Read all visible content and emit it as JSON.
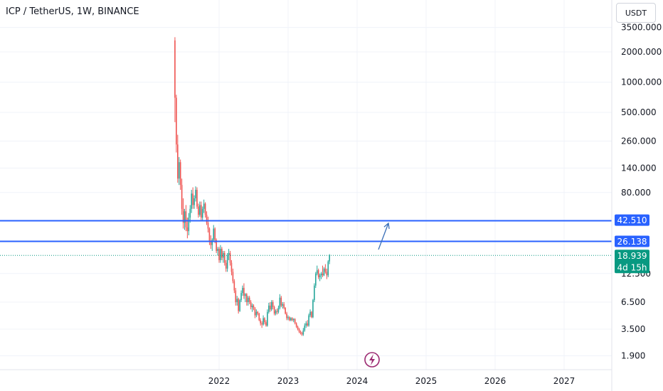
{
  "header": {
    "title": "ICP / TetherUS, 1W, BINANCE",
    "currency": "USDT"
  },
  "colors": {
    "up": "#26a69a",
    "down": "#ef5350",
    "level": "#2962ff",
    "arrow": "#3a6fb7",
    "last": "#089981",
    "event": "#9c2a72"
  },
  "chart_data": {
    "type": "candlestick",
    "title": "ICP / TetherUS, 1W, BINANCE",
    "y_scale": "log",
    "y_ticks": [
      "3500.000",
      "2000.000",
      "1000.000",
      "500.000",
      "260.000",
      "140.000",
      "80.000",
      "12.500",
      "6.500",
      "3.500",
      "1.900"
    ],
    "x_ticks": [
      "2022",
      "2023",
      "2024",
      "2025",
      "2026",
      "2027"
    ],
    "levels": [
      {
        "label": "42.510",
        "value": 42.51
      },
      {
        "label": "26.138",
        "value": 26.138
      }
    ],
    "last_price": {
      "label": "18.939",
      "value": 18.939,
      "countdown": "4d 15h"
    },
    "series": [
      {
        "values": [
          [
            2021.36,
            2600,
            2800,
            400,
            700
          ],
          [
            2021.38,
            700,
            750,
            200,
            240
          ],
          [
            2021.4,
            240,
            300,
            100,
            110
          ],
          [
            2021.42,
            110,
            180,
            95,
            160
          ],
          [
            2021.44,
            160,
            170,
            85,
            95
          ],
          [
            2021.46,
            95,
            110,
            48,
            55
          ],
          [
            2021.48,
            55,
            70,
            35,
            40
          ],
          [
            2021.5,
            40,
            55,
            34,
            52
          ],
          [
            2021.52,
            52,
            60,
            33,
            36
          ],
          [
            2021.54,
            36,
            45,
            28,
            33
          ],
          [
            2021.56,
            33,
            50,
            30,
            45
          ],
          [
            2021.58,
            45,
            60,
            40,
            55
          ],
          [
            2021.6,
            55,
            85,
            50,
            78
          ],
          [
            2021.62,
            78,
            90,
            55,
            60
          ],
          [
            2021.64,
            60,
            75,
            55,
            70
          ],
          [
            2021.66,
            70,
            92,
            65,
            85
          ],
          [
            2021.68,
            85,
            90,
            55,
            58
          ],
          [
            2021.7,
            58,
            62,
            45,
            48
          ],
          [
            2021.72,
            48,
            65,
            46,
            60
          ],
          [
            2021.74,
            60,
            65,
            42,
            45
          ],
          [
            2021.76,
            45,
            58,
            42,
            55
          ],
          [
            2021.78,
            55,
            68,
            50,
            62
          ],
          [
            2021.8,
            62,
            64,
            45,
            48
          ],
          [
            2021.82,
            48,
            52,
            38,
            40
          ],
          [
            2021.84,
            40,
            46,
            32,
            35
          ],
          [
            2021.86,
            35,
            36,
            24,
            26
          ],
          [
            2021.88,
            26,
            30,
            22,
            24
          ],
          [
            2021.9,
            24,
            28,
            21,
            27
          ],
          [
            2021.92,
            27,
            38,
            26,
            35
          ],
          [
            2021.94,
            35,
            36,
            25,
            27
          ],
          [
            2021.96,
            27,
            28,
            20,
            21
          ],
          [
            2021.98,
            21,
            23,
            19,
            22
          ],
          [
            2022.0,
            22,
            23,
            16,
            17
          ],
          [
            2022.02,
            17,
            24,
            16,
            22
          ],
          [
            2022.04,
            22,
            23,
            17,
            18
          ],
          [
            2022.06,
            18,
            21,
            16,
            20
          ],
          [
            2022.08,
            20,
            21,
            15,
            16
          ],
          [
            2022.1,
            16,
            17,
            13,
            14
          ],
          [
            2022.12,
            14,
            20,
            13,
            19
          ],
          [
            2022.14,
            19,
            22,
            17,
            20
          ],
          [
            2022.16,
            20,
            21,
            15,
            16
          ],
          [
            2022.18,
            16,
            17,
            12,
            13
          ],
          [
            2022.2,
            13,
            14,
            10,
            10.5
          ],
          [
            2022.22,
            10.5,
            11,
            8,
            8.5
          ],
          [
            2022.24,
            8.5,
            9,
            6,
            6.5
          ],
          [
            2022.26,
            6.5,
            7.5,
            6,
            7
          ],
          [
            2022.28,
            7,
            7.2,
            5,
            5.3
          ],
          [
            2022.3,
            5.3,
            7,
            5.2,
            6.8
          ],
          [
            2022.32,
            6.8,
            8.5,
            6.5,
            8
          ],
          [
            2022.34,
            8,
            9.5,
            7.5,
            9
          ],
          [
            2022.36,
            9,
            10,
            7,
            7.5
          ],
          [
            2022.38,
            7.5,
            8,
            6.5,
            7.8
          ],
          [
            2022.4,
            7.8,
            8,
            6,
            6.5
          ],
          [
            2022.42,
            6.5,
            7.5,
            6,
            7.2
          ],
          [
            2022.44,
            7.2,
            7.5,
            6.2,
            6.5
          ],
          [
            2022.46,
            6.5,
            6.8,
            5.5,
            5.8
          ],
          [
            2022.48,
            5.8,
            6.3,
            5.2,
            6
          ],
          [
            2022.5,
            6,
            6.2,
            5.4,
            5.6
          ],
          [
            2022.52,
            5.6,
            5.8,
            4.5,
            4.8
          ],
          [
            2022.54,
            4.8,
            5.5,
            4.6,
            5.2
          ],
          [
            2022.56,
            5.2,
            5.3,
            4.8,
            5
          ],
          [
            2022.58,
            5,
            5.1,
            4.2,
            4.3
          ],
          [
            2022.6,
            4.3,
            4.5,
            3.8,
            4
          ],
          [
            2022.62,
            4,
            4.2,
            3.6,
            3.9
          ],
          [
            2022.64,
            3.9,
            4.8,
            3.8,
            4.5
          ],
          [
            2022.66,
            4.5,
            4.6,
            3.9,
            4.1
          ],
          [
            2022.68,
            4.1,
            4.3,
            3.7,
            3.8
          ],
          [
            2022.7,
            3.8,
            5.5,
            3.7,
            5.2
          ],
          [
            2022.72,
            5.2,
            6.4,
            5,
            6
          ],
          [
            2022.74,
            6,
            6.5,
            5.2,
            5.5
          ],
          [
            2022.76,
            5.5,
            6.8,
            5.3,
            6.5
          ],
          [
            2022.78,
            6.5,
            6.8,
            5.5,
            5.8
          ],
          [
            2022.8,
            5.8,
            6,
            4.8,
            5
          ],
          [
            2022.82,
            5,
            5.5,
            4.8,
            5.3
          ],
          [
            2022.84,
            5.3,
            5.6,
            4.9,
            5.2
          ],
          [
            2022.86,
            5.2,
            6,
            5,
            5.7
          ],
          [
            2022.88,
            5.7,
            7.8,
            5.5,
            7.2
          ],
          [
            2022.9,
            7.2,
            7.5,
            5.8,
            6
          ],
          [
            2022.92,
            6,
            6.5,
            5.6,
            6.2
          ],
          [
            2022.94,
            6.2,
            6.5,
            5.5,
            5.7
          ],
          [
            2022.96,
            5.7,
            5.8,
            4.9,
            5
          ],
          [
            2022.98,
            5,
            5.2,
            4.3,
            4.5
          ],
          [
            2023.0,
            4.5,
            4.8,
            4.3,
            4.6
          ],
          [
            2023.02,
            4.6,
            4.7,
            4.2,
            4.3
          ],
          [
            2023.04,
            4.3,
            4.6,
            4.2,
            4.5
          ],
          [
            2023.06,
            4.5,
            4.6,
            4.2,
            4.3
          ],
          [
            2023.08,
            4.3,
            4.5,
            4.1,
            4.4
          ],
          [
            2023.1,
            4.4,
            4.5,
            3.9,
            4
          ],
          [
            2023.12,
            4,
            4.1,
            3.6,
            3.7
          ],
          [
            2023.14,
            3.7,
            3.8,
            3.4,
            3.5
          ],
          [
            2023.16,
            3.5,
            3.6,
            3.2,
            3.3
          ],
          [
            2023.18,
            3.3,
            3.4,
            3.1,
            3.2
          ],
          [
            2023.2,
            3.2,
            3.3,
            3,
            3.1
          ],
          [
            2023.22,
            3.1,
            3.6,
            3,
            3.4
          ],
          [
            2023.24,
            3.4,
            4,
            3.3,
            3.8
          ],
          [
            2023.26,
            3.8,
            4.2,
            3.6,
            4
          ],
          [
            2023.28,
            4,
            4.3,
            3.7,
            3.8
          ],
          [
            2023.3,
            3.8,
            5,
            3.7,
            4.8
          ],
          [
            2023.32,
            4.8,
            5.5,
            4.6,
            5.2
          ],
          [
            2023.34,
            5.2,
            5.3,
            4.5,
            4.6
          ],
          [
            2023.36,
            4.6,
            7,
            4.5,
            6.8
          ],
          [
            2023.38,
            6.8,
            10,
            6.5,
            9.5
          ],
          [
            2023.4,
            9.5,
            13,
            9,
            12.5
          ],
          [
            2023.42,
            12.5,
            15,
            12,
            13.5
          ],
          [
            2023.44,
            13.5,
            14,
            11,
            11.5
          ],
          [
            2023.46,
            11.5,
            12.5,
            10.5,
            12
          ],
          [
            2023.48,
            12,
            13,
            11,
            12.5
          ],
          [
            2023.5,
            12.5,
            15,
            11.5,
            12
          ],
          [
            2023.52,
            12,
            14.5,
            11.8,
            14
          ],
          [
            2023.54,
            14,
            15.5,
            12.5,
            13
          ],
          [
            2023.56,
            13,
            14,
            11,
            12
          ],
          [
            2023.58,
            12,
            17,
            11.5,
            16.5
          ],
          [
            2023.6,
            16.5,
            19.5,
            15.5,
            18.9
          ]
        ]
      }
    ]
  }
}
